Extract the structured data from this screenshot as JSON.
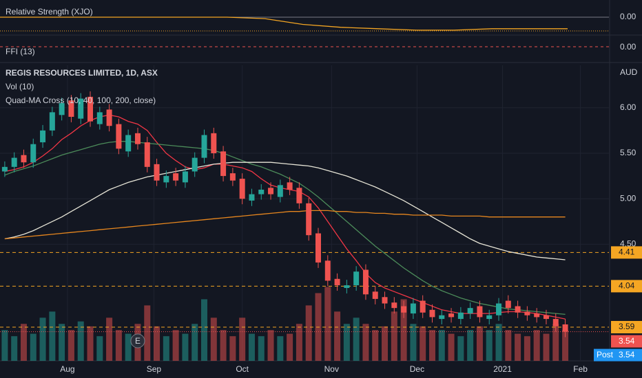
{
  "chart_data": {
    "type": "candlestick",
    "title": "REGIS RESOURCES LIMITED, 1D, ASX",
    "indicators": [
      "Vol (10)",
      "Quad-MA Cross (10, 40, 100, 200, close)"
    ],
    "currency": "AUD",
    "categories": [
      null,
      null,
      null,
      null,
      null,
      null,
      null,
      null,
      null,
      null,
      null,
      null,
      null,
      null,
      null,
      null,
      null,
      null,
      null,
      null,
      null,
      null,
      null,
      null,
      null,
      null,
      null,
      null,
      null,
      null,
      null,
      null,
      null,
      null,
      null,
      null,
      null,
      null,
      null,
      null,
      null,
      null,
      null,
      null,
      null,
      null,
      null,
      null,
      null,
      null,
      null,
      null,
      null,
      null,
      null,
      null,
      null,
      null,
      null,
      null
    ],
    "xlim": [
      -0.5,
      63.6
    ],
    "xticks": [
      {
        "value": 6.6,
        "label": "Aug"
      },
      {
        "value": 15.7,
        "label": "Sep"
      },
      {
        "value": 25.0,
        "label": "Oct"
      },
      {
        "value": 34.4,
        "label": "Nov"
      },
      {
        "value": 43.4,
        "label": "Dec"
      },
      {
        "value": 52.4,
        "label": "2021"
      },
      {
        "value": 60.6,
        "label": "Feb"
      }
    ],
    "ylim": [
      3.22,
      6.466
    ],
    "yticks": [
      {
        "value": 4.5,
        "label": "4.50"
      },
      {
        "value": 5,
        "label": "5.00"
      },
      {
        "value": 5.5,
        "label": "5.50"
      },
      {
        "value": 6,
        "label": "6.00"
      }
    ],
    "up_color": "#26a69a",
    "down_color": "#ef5350",
    "open": [
      5.3,
      5.35,
      5.48,
      5.4,
      5.62,
      5.75,
      5.92,
      6.08,
      5.88,
      6.12,
      5.82,
      5.98,
      5.82,
      5.52,
      5.72,
      5.62,
      5.38,
      5.18,
      5.28,
      5.18,
      5.3,
      5.45,
      5.72,
      5.52,
      5.28,
      5.22,
      4.98,
      5.05,
      5.12,
      5.02,
      5.18,
      5.12,
      4.95,
      4.62,
      4.32,
      4.12,
      4.02,
      4.05,
      4.22,
      3.98,
      3.92,
      3.86,
      3.82,
      3.74,
      3.88,
      3.78,
      3.68,
      3.74,
      3.68,
      3.74,
      3.82,
      3.68,
      3.72,
      3.88,
      3.82,
      3.76,
      3.74,
      3.72,
      3.68,
      3.62
    ],
    "high": [
      5.41,
      5.51,
      5.54,
      5.66,
      5.81,
      6.01,
      6.11,
      6.14,
      6.16,
      6.18,
      6.01,
      6.04,
      5.88,
      5.76,
      5.78,
      5.68,
      5.44,
      5.31,
      5.34,
      5.36,
      5.51,
      5.76,
      5.78,
      5.58,
      5.34,
      5.28,
      5.11,
      5.16,
      5.18,
      5.21,
      5.24,
      5.18,
      5.01,
      4.68,
      4.38,
      4.18,
      4.11,
      4.26,
      4.28,
      4.04,
      3.98,
      3.92,
      3.88,
      3.91,
      3.94,
      3.84,
      3.78,
      3.8,
      3.81,
      3.86,
      3.88,
      3.78,
      3.91,
      3.94,
      3.88,
      3.82,
      3.8,
      3.78,
      3.74,
      3.68
    ],
    "low": [
      5.24,
      5.29,
      5.34,
      5.34,
      5.56,
      5.69,
      5.86,
      5.84,
      5.82,
      5.79,
      5.76,
      5.74,
      5.49,
      5.46,
      5.54,
      5.29,
      5.14,
      5.12,
      5.14,
      5.12,
      5.24,
      5.39,
      5.44,
      5.19,
      5.14,
      4.94,
      4.92,
      4.99,
      4.99,
      4.96,
      5.04,
      4.89,
      4.54,
      4.24,
      4.04,
      3.99,
      3.96,
      3.99,
      3.89,
      3.84,
      3.79,
      3.74,
      3.69,
      3.68,
      3.69,
      3.64,
      3.62,
      3.64,
      3.62,
      3.68,
      3.64,
      3.62,
      3.66,
      3.74,
      3.69,
      3.66,
      3.64,
      3.62,
      3.54,
      3.48
    ],
    "close": [
      5.35,
      5.45,
      5.4,
      5.6,
      5.75,
      5.95,
      6.05,
      5.9,
      6.1,
      5.85,
      5.95,
      5.8,
      5.55,
      5.7,
      5.6,
      5.35,
      5.2,
      5.25,
      5.2,
      5.3,
      5.45,
      5.7,
      5.5,
      5.25,
      5.2,
      5.0,
      5.05,
      5.1,
      5.05,
      5.15,
      5.1,
      4.95,
      4.6,
      4.3,
      4.1,
      4.05,
      4.05,
      4.2,
      3.95,
      3.9,
      3.85,
      3.8,
      3.75,
      3.85,
      3.75,
      3.7,
      3.72,
      3.7,
      3.75,
      3.8,
      3.7,
      3.72,
      3.85,
      3.8,
      3.75,
      3.72,
      3.7,
      3.68,
      3.6,
      3.54
    ],
    "volume": {
      "vlim": [
        0,
        24
      ],
      "values": [
        2.5,
        2.0,
        3.0,
        2.2,
        3.5,
        4.0,
        3.0,
        2.5,
        3.2,
        2.8,
        2.0,
        3.5,
        2.5,
        2.2,
        3.0,
        4.5,
        2.8,
        2.0,
        2.5,
        2.2,
        3.0,
        5.0,
        3.5,
        2.5,
        2.0,
        3.5,
        2.2,
        2.0,
        2.5,
        2.0,
        2.2,
        3.0,
        4.5,
        5.5,
        6.0,
        4.0,
        3.0,
        3.5,
        3.0,
        2.5,
        2.8,
        4.0,
        5.0,
        3.0,
        2.8,
        2.5,
        2.5,
        2.2,
        2.0,
        2.5,
        2.8,
        2.5,
        3.0,
        2.5,
        2.2,
        2.0,
        2.5,
        2.2,
        3.0,
        2.5
      ]
    },
    "series": [
      {
        "color": "#f23645",
        "values": [
          5.3,
          5.32,
          5.35,
          5.4,
          5.47,
          5.55,
          5.65,
          5.72,
          5.8,
          5.86,
          5.9,
          5.92,
          5.9,
          5.85,
          5.82,
          5.75,
          5.62,
          5.5,
          5.42,
          5.35,
          5.32,
          5.34,
          5.38,
          5.38,
          5.36,
          5.34,
          5.3,
          5.22,
          5.15,
          5.12,
          5.1,
          5.08,
          5.02,
          4.9,
          4.75,
          4.6,
          4.45,
          4.32,
          4.18,
          4.08,
          4.02,
          3.98,
          3.94,
          3.9,
          3.86,
          3.82,
          3.78,
          3.76,
          3.74,
          3.74,
          3.74,
          3.74,
          3.75,
          3.76,
          3.76,
          3.75,
          3.74,
          3.72,
          3.7,
          3.68
        ]
      },
      {
        "color": "#4c8c5a",
        "values": [
          5.26,
          5.3,
          5.33,
          5.36,
          5.4,
          5.44,
          5.48,
          5.51,
          5.54,
          5.57,
          5.6,
          5.62,
          5.63,
          5.63,
          5.62,
          5.61,
          5.6,
          5.59,
          5.58,
          5.57,
          5.56,
          5.55,
          5.53,
          5.5,
          5.46,
          5.42,
          5.38,
          5.35,
          5.31,
          5.27,
          5.22,
          5.17,
          5.1,
          5.02,
          4.93,
          4.84,
          4.75,
          4.66,
          4.57,
          4.48,
          4.4,
          4.32,
          4.24,
          4.17,
          4.1,
          4.04,
          3.99,
          3.95,
          3.91,
          3.88,
          3.85,
          3.83,
          3.81,
          3.79,
          3.78,
          3.77,
          3.76,
          3.75,
          3.74,
          3.73
        ]
      },
      {
        "color": "#e8e6d8",
        "values": [
          4.56,
          4.58,
          4.61,
          4.65,
          4.7,
          4.75,
          4.8,
          4.86,
          4.92,
          4.98,
          5.04,
          5.1,
          5.14,
          5.18,
          5.21,
          5.24,
          5.26,
          5.28,
          5.3,
          5.32,
          5.34,
          5.36,
          5.38,
          5.39,
          5.4,
          5.4,
          5.4,
          5.4,
          5.4,
          5.39,
          5.38,
          5.37,
          5.36,
          5.34,
          5.31,
          5.28,
          5.25,
          5.21,
          5.17,
          5.13,
          5.08,
          5.03,
          4.98,
          4.92,
          4.86,
          4.8,
          4.74,
          4.68,
          4.62,
          4.56,
          4.51,
          4.48,
          4.45,
          4.42,
          4.4,
          4.38,
          4.36,
          4.35,
          4.34,
          4.33
        ]
      },
      {
        "color": "#e8871e",
        "values": [
          4.56,
          4.57,
          4.58,
          4.59,
          4.6,
          4.61,
          4.62,
          4.63,
          4.64,
          4.65,
          4.66,
          4.67,
          4.68,
          4.69,
          4.7,
          4.71,
          4.72,
          4.73,
          4.74,
          4.75,
          4.76,
          4.77,
          4.78,
          4.79,
          4.8,
          4.81,
          4.82,
          4.83,
          4.84,
          4.85,
          4.86,
          4.86,
          4.87,
          4.87,
          4.87,
          4.86,
          4.86,
          4.85,
          4.85,
          4.84,
          4.84,
          4.83,
          4.83,
          4.82,
          4.82,
          4.82,
          4.82,
          4.81,
          4.81,
          4.81,
          4.81,
          4.8,
          4.8,
          4.8,
          4.8,
          4.8,
          4.8,
          4.8,
          4.8,
          4.8
        ]
      }
    ],
    "levels": [
      {
        "value": 4.41,
        "color": "#f5a623"
      },
      {
        "value": 4.04,
        "color": "#f5a623"
      },
      {
        "value": 3.59,
        "color": "#f5a623"
      }
    ],
    "last_price": {
      "value": 3.54,
      "color": "#ef5350"
    },
    "post": {
      "label": "Post",
      "value": 3.54,
      "color": "#2196f3"
    },
    "earnings": {
      "label": "E",
      "index": 14
    },
    "rs_panel": {
      "title": "Relative Strength (XJO)",
      "ylim": [
        -0.1,
        0.1
      ],
      "ytick": {
        "value": 0,
        "label": "0.00"
      },
      "color": "#f5a623",
      "values": [
        0,
        0,
        0,
        0,
        0,
        0,
        0,
        -0.01,
        -0.05,
        -0.07,
        -0.08,
        -0.09,
        -0.09,
        -0.08,
        -0.08,
        -0.08
      ]
    },
    "ffi_panel": {
      "title": "FFI (13)",
      "ytick": {
        "value": 0,
        "label": "0.00"
      }
    }
  }
}
